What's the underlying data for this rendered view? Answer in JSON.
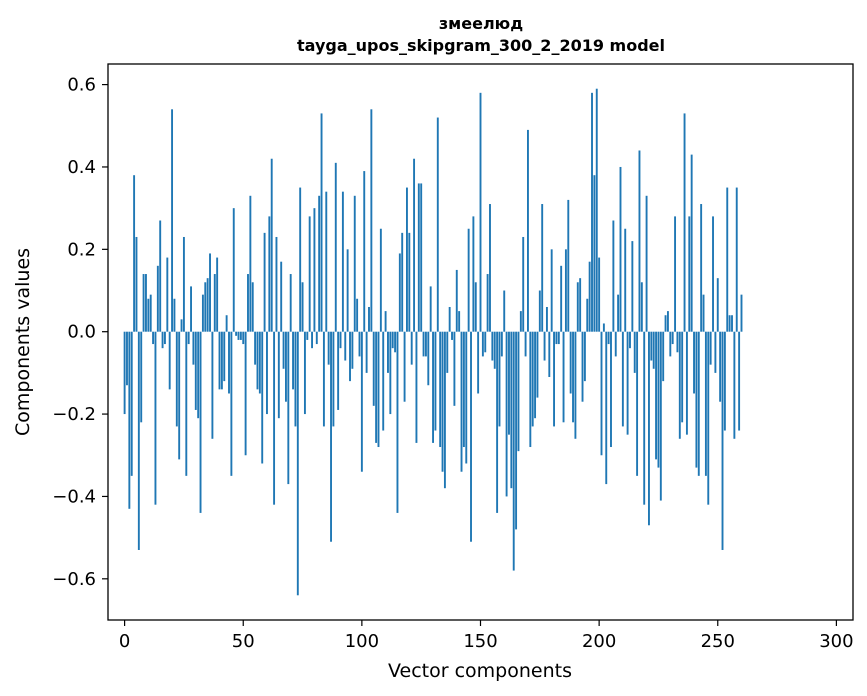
{
  "chart_data": {
    "type": "bar",
    "title": "змеелюд",
    "subtitle": "tayga_upos_skipgram_300_2_2019 model",
    "xlabel": "Vector components",
    "ylabel": "Components values",
    "xlim": [
      -7,
      307
    ],
    "ylim": [
      -0.7,
      0.65
    ],
    "x_ticks": [
      0,
      50,
      100,
      150,
      200,
      250,
      300
    ],
    "x_tick_labels": [
      "0",
      "50",
      "100",
      "150",
      "200",
      "250",
      "300"
    ],
    "y_ticks": [
      -0.6,
      -0.4,
      -0.2,
      0.0,
      0.2,
      0.4,
      0.6
    ],
    "y_tick_labels": [
      "−0.6",
      "−0.4",
      "−0.2",
      "0.0",
      "0.2",
      "0.4",
      "0.6"
    ],
    "bar_color": "#1f77b4",
    "grid": false,
    "values": [
      -0.2,
      -0.13,
      -0.43,
      -0.35,
      0.38,
      0.23,
      -0.53,
      -0.22,
      0.14,
      0.14,
      0.08,
      0.09,
      -0.03,
      -0.42,
      0.16,
      0.27,
      -0.04,
      -0.03,
      0.18,
      -0.14,
      0.54,
      0.08,
      -0.23,
      -0.31,
      0.03,
      0.23,
      -0.35,
      -0.03,
      0.11,
      -0.08,
      -0.19,
      -0.21,
      -0.44,
      0.09,
      0.12,
      0.13,
      0.19,
      -0.26,
      0.14,
      0.18,
      -0.14,
      -0.14,
      -0.12,
      0.04,
      -0.15,
      -0.35,
      0.3,
      -0.01,
      -0.02,
      -0.02,
      -0.03,
      -0.3,
      0.14,
      0.33,
      0.12,
      -0.08,
      -0.14,
      -0.15,
      -0.32,
      0.24,
      -0.2,
      0.28,
      0.42,
      -0.42,
      0.23,
      -0.21,
      0.17,
      -0.09,
      -0.17,
      -0.37,
      0.14,
      -0.14,
      -0.23,
      -0.64,
      0.35,
      0.12,
      -0.2,
      -0.02,
      0.28,
      -0.04,
      0.3,
      -0.03,
      0.33,
      0.53,
      -0.23,
      0.34,
      -0.08,
      -0.51,
      -0.23,
      0.41,
      -0.19,
      -0.04,
      0.34,
      -0.07,
      0.2,
      -0.12,
      -0.09,
      0.33,
      0.08,
      -0.06,
      -0.34,
      0.39,
      -0.1,
      0.06,
      0.54,
      -0.18,
      -0.27,
      -0.28,
      0.25,
      -0.24,
      0.05,
      -0.1,
      -0.2,
      -0.04,
      -0.05,
      -0.44,
      0.19,
      0.24,
      -0.17,
      0.35,
      0.24,
      -0.08,
      0.42,
      -0.27,
      0.36,
      0.36,
      -0.06,
      -0.06,
      -0.13,
      0.11,
      -0.27,
      -0.24,
      0.52,
      -0.28,
      -0.34,
      -0.38,
      -0.1,
      0.06,
      -0.02,
      -0.18,
      0.15,
      0.05,
      -0.34,
      -0.28,
      -0.32,
      0.25,
      -0.51,
      0.28,
      0.12,
      -0.15,
      0.58,
      -0.06,
      -0.05,
      0.14,
      0.31,
      -0.07,
      -0.09,
      -0.44,
      -0.23,
      -0.06,
      0.1,
      -0.4,
      -0.25,
      -0.38,
      -0.58,
      -0.48,
      -0.29,
      0.05,
      0.23,
      -0.06,
      0.49,
      -0.28,
      -0.23,
      -0.21,
      -0.16,
      0.1,
      0.31,
      -0.07,
      0.06,
      -0.11,
      0.2,
      -0.23,
      -0.03,
      -0.03,
      0.16,
      -0.22,
      0.2,
      0.32,
      -0.15,
      -0.22,
      -0.26,
      0.12,
      0.13,
      -0.17,
      -0.12,
      0.08,
      0.17,
      0.58,
      0.38,
      0.59,
      0.18,
      -0.3,
      0.02,
      -0.37,
      -0.03,
      -0.28,
      0.27,
      -0.06,
      0.09,
      0.4,
      -0.23,
      0.25,
      -0.25,
      -0.04,
      0.22,
      -0.1,
      -0.35,
      0.44,
      0.12,
      -0.42,
      0.33,
      -0.47,
      -0.07,
      -0.09,
      -0.31,
      -0.33,
      -0.41,
      -0.12,
      0.04,
      0.05,
      -0.06,
      -0.03,
      0.28,
      -0.05,
      -0.26,
      -0.22,
      0.53,
      -0.25,
      0.28,
      0.43,
      -0.15,
      -0.33,
      -0.35,
      0.31,
      0.09,
      -0.35,
      -0.42,
      -0.08,
      0.28,
      -0.1,
      0.13,
      -0.17,
      -0.53,
      -0.24,
      0.35,
      0.04,
      0.04,
      -0.26,
      0.35,
      -0.24,
      0.09
    ]
  }
}
